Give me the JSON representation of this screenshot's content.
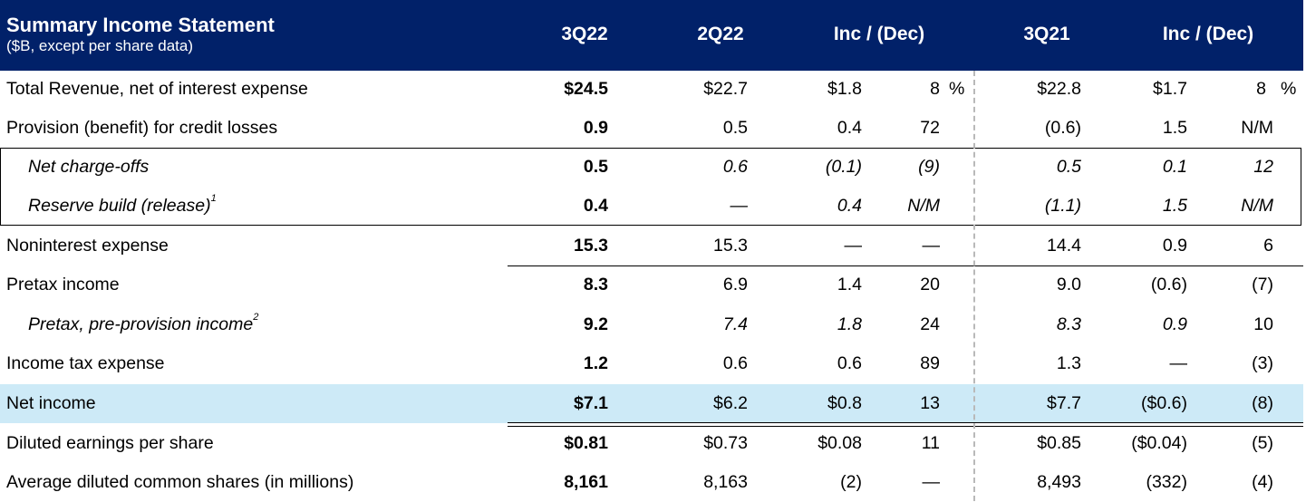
{
  "header": {
    "title": "Summary Income Statement",
    "subtitle": "($B, except per share data)",
    "columns": [
      "3Q22",
      "2Q22",
      "Inc / (Dec)",
      "3Q21",
      "Inc / (Dec)"
    ]
  },
  "rows": [
    {
      "label": "Total Revenue, net of interest expense",
      "v1": "$24.5",
      "v2": "$22.7",
      "v3": "$1.8",
      "v4": "8",
      "v5": "$22.8",
      "v6": "$1.7",
      "v7": "8",
      "pct": "%"
    },
    {
      "label": "Provision (benefit) for credit losses",
      "v1": "0.9",
      "v2": "0.5",
      "v3": "0.4",
      "v4": "72",
      "v5": "(0.6)",
      "v6": "1.5",
      "v7": "N/M"
    },
    {
      "label": "Net charge-offs",
      "v1": "0.5",
      "v2": "0.6",
      "v3": "(0.1)",
      "v4": "(9)",
      "v5": "0.5",
      "v6": "0.1",
      "v7": "12"
    },
    {
      "label": "Reserve build (release)",
      "sup": "1",
      "v1": "0.4",
      "v2": "—",
      "v3": "0.4",
      "v4": "N/M",
      "v5": "(1.1)",
      "v6": "1.5",
      "v7": "N/M"
    },
    {
      "label": "Noninterest expense",
      "v1": "15.3",
      "v2": "15.3",
      "v3": "—",
      "v4": "—",
      "v5": "14.4",
      "v6": "0.9",
      "v7": "6"
    },
    {
      "label": "Pretax income",
      "v1": "8.3",
      "v2": "6.9",
      "v3": "1.4",
      "v4": "20",
      "v5": "9.0",
      "v6": "(0.6)",
      "v7": "(7)"
    },
    {
      "label": "Pretax, pre-provision income",
      "sup": "2",
      "v1": "9.2",
      "v2": "7.4",
      "v3": "1.8",
      "v4": "24",
      "v5": "8.3",
      "v6": "0.9",
      "v7": "10"
    },
    {
      "label": "Income tax expense",
      "v1": "1.2",
      "v2": "0.6",
      "v3": "0.6",
      "v4": "89",
      "v5": "1.3",
      "v6": "—",
      "v7": "(3)"
    },
    {
      "label": "Net income",
      "v1": "$7.1",
      "v2": "$6.2",
      "v3": "$0.8",
      "v4": "13",
      "v5": "$7.7",
      "v6": "($0.6)",
      "v7": "(8)"
    },
    {
      "label": "Diluted earnings per share",
      "v1": "$0.81",
      "v2": "$0.73",
      "v3": "$0.08",
      "v4": "11",
      "v5": "$0.85",
      "v6": "($0.04)",
      "v7": "(5)"
    },
    {
      "label": "Average diluted common shares (in millions)",
      "v1": "8,161",
      "v2": "8,163",
      "v3": "(2)",
      "v4": "—",
      "v5": "8,493",
      "v6": "(332)",
      "v7": "(4)"
    }
  ],
  "colors": {
    "header_bg": "#012169",
    "highlight": "#cdeaf7"
  }
}
